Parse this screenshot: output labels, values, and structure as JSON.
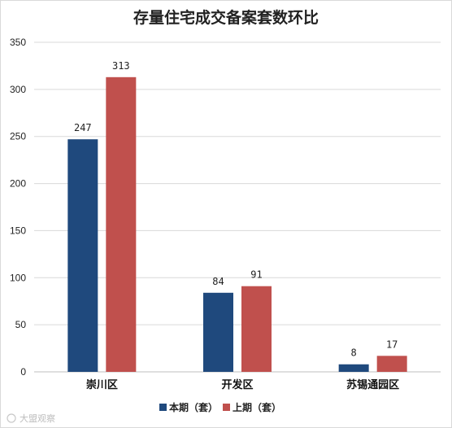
{
  "chart_data": {
    "type": "bar",
    "title": "存量住宅成交备案套数环比",
    "categories": [
      "崇川区",
      "开发区",
      "苏锡通园区"
    ],
    "series": [
      {
        "name": "本期（套）",
        "values": [
          247,
          84,
          8
        ],
        "color": "#1f497d"
      },
      {
        "name": "上期（套）",
        "values": [
          313,
          91,
          17
        ],
        "color": "#c0504d"
      }
    ],
    "ylim": [
      0,
      350
    ],
    "yticks": [
      0,
      50,
      100,
      150,
      200,
      250,
      300,
      350
    ],
    "grid": true,
    "legend": "bottom"
  },
  "watermark": "大盟观察"
}
